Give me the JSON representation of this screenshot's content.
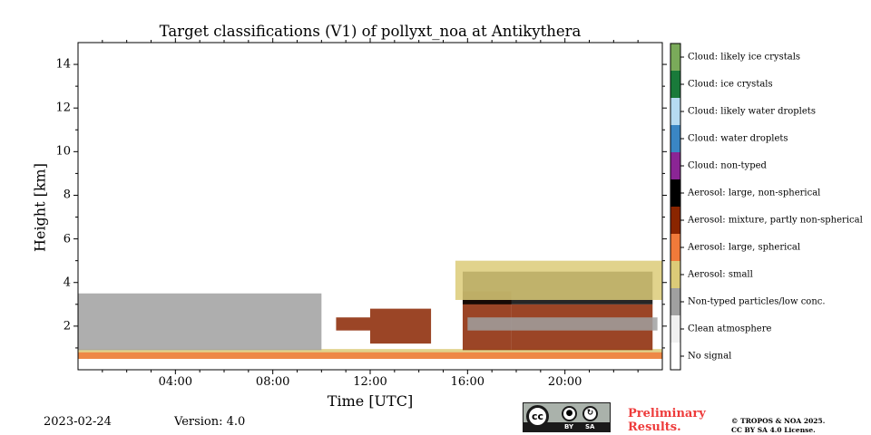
{
  "footer": {
    "date": "2023-02-24",
    "version": "Version: 4.0",
    "preliminary_line1": "Preliminary",
    "preliminary_line2": "Results.",
    "copyright_line1": "© TROPOS & NOA 2025.",
    "copyright_line2": "CC BY SA 4.0 License.",
    "license_badge": {
      "cc": "cc",
      "by": "BY",
      "sa": "SA"
    }
  },
  "chart_data": {
    "type": "heatmap",
    "title": "Target classifications (V1) of pollyxt_noa at Antikythera",
    "xlabel": "Time [UTC]",
    "ylabel": "Height [km]",
    "xlim_hours": [
      0,
      24
    ],
    "ylim_km": [
      0,
      15
    ],
    "xticks": [
      {
        "value": 4,
        "label": "04:00"
      },
      {
        "value": 8,
        "label": "08:00"
      },
      {
        "value": 12,
        "label": "12:00"
      },
      {
        "value": 16,
        "label": "16:00"
      },
      {
        "value": 20,
        "label": "20:00"
      }
    ],
    "yticks": [
      {
        "value": 2,
        "label": "2"
      },
      {
        "value": 4,
        "label": "4"
      },
      {
        "value": 6,
        "label": "6"
      },
      {
        "value": 8,
        "label": "8"
      },
      {
        "value": 10,
        "label": "10"
      },
      {
        "value": 12,
        "label": "12"
      },
      {
        "value": 14,
        "label": "14"
      }
    ],
    "classes": [
      {
        "label": "No signal",
        "color": "#ffffff"
      },
      {
        "label": "Clean atmosphere",
        "color": "#f0f0f0"
      },
      {
        "label": "Non-typed particles/low conc.",
        "color": "#a0a0a0"
      },
      {
        "label": "Aerosol: small",
        "color": "#dccb78"
      },
      {
        "label": "Aerosol: large, spherical",
        "color": "#f07a3a"
      },
      {
        "label": "Aerosol: mixture, partly non-spherical",
        "color": "#8a2500"
      },
      {
        "label": "Aerosol: large, non-spherical",
        "color": "#000000"
      },
      {
        "label": "Cloud: non-typed",
        "color": "#8b2595"
      },
      {
        "label": "Cloud: water droplets",
        "color": "#3a86c4"
      },
      {
        "label": "Cloud: likely water droplets",
        "color": "#b6dbf2"
      },
      {
        "label": "Cloud: ice crystals",
        "color": "#197a3a"
      },
      {
        "label": "Cloud: likely ice crystals",
        "color": "#7aaa5a"
      }
    ],
    "layers": [
      {
        "class": "Aerosol: small",
        "from_h": 0.0,
        "to_h": 24.0,
        "bottom_km": 0.5,
        "top_km": 0.95
      },
      {
        "class": "Aerosol: large, spherical",
        "from_h": 0.0,
        "to_h": 24.0,
        "bottom_km": 0.5,
        "top_km": 0.8
      },
      {
        "class": "Non-typed particles/low conc.",
        "from_h": 0.0,
        "to_h": 10.0,
        "bottom_km": 0.9,
        "top_km": 3.5
      },
      {
        "class": "Aerosol: mixture, partly non-spherical",
        "from_h": 10.6,
        "to_h": 12.0,
        "bottom_km": 1.8,
        "top_km": 2.4
      },
      {
        "class": "Aerosol: mixture, partly non-spherical",
        "from_h": 12.0,
        "to_h": 14.5,
        "bottom_km": 1.2,
        "top_km": 2.8
      },
      {
        "class": "Aerosol: mixture, partly non-spherical",
        "from_h": 15.8,
        "to_h": 17.8,
        "bottom_km": 0.9,
        "top_km": 3.6
      },
      {
        "class": "Aerosol: mixture, partly non-spherical",
        "from_h": 17.8,
        "to_h": 23.6,
        "bottom_km": 0.9,
        "top_km": 3.0
      },
      {
        "class": "Aerosol: large, non-spherical",
        "from_h": 15.8,
        "to_h": 23.6,
        "bottom_km": 3.0,
        "top_km": 4.5
      },
      {
        "class": "Aerosol: small",
        "from_h": 15.5,
        "to_h": 24.0,
        "bottom_km": 3.2,
        "top_km": 5.0
      },
      {
        "class": "Non-typed particles/low conc.",
        "from_h": 16.0,
        "to_h": 23.8,
        "bottom_km": 1.8,
        "top_km": 2.4
      }
    ]
  }
}
